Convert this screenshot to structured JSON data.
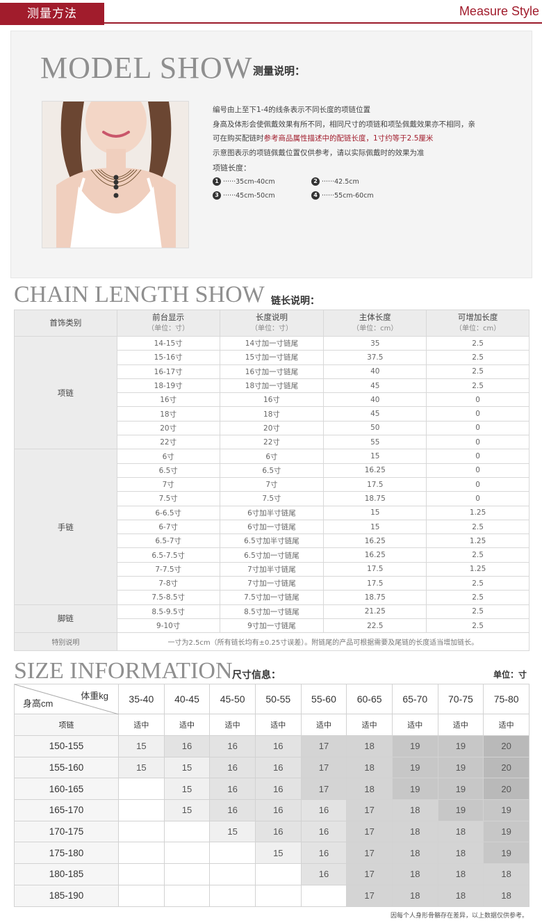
{
  "header": {
    "title": "测量方法",
    "right_label": "Measure Style"
  },
  "model_show": {
    "heading": "MODEL SHOW",
    "subheading": "测量说明：",
    "lines": [
      "编号由上至下1-4的线条表示不同长度的项链位置",
      "身高及体形会使佩戴效果有所不同，相同尺寸的项链和项坠佩戴效果亦不相同，亲"
    ],
    "line3_pre": "可在购买配链时",
    "line3_hl": "参考商品属性描述中的配链长度，1寸约等于2.5厘米",
    "line4": "示意图表示的项链佩戴位置仅供参考，请以实际佩戴时的效果为准",
    "length_title": "项链长度：",
    "lengths": [
      {
        "num": "1",
        "text": "······35cm-40cm"
      },
      {
        "num": "2",
        "text": "······42.5cm"
      },
      {
        "num": "3",
        "text": "······45cm-50cm"
      },
      {
        "num": "4",
        "text": "······55cm-60cm"
      }
    ]
  },
  "chain_length": {
    "heading": "CHAIN LENGTH SHOW",
    "subheading": "链长说明：",
    "columns": [
      {
        "label": "首饰类别",
        "unit": ""
      },
      {
        "label": "前台显示",
        "unit": "（单位：寸）"
      },
      {
        "label": "长度说明",
        "unit": "（单位：寸）"
      },
      {
        "label": "主体长度",
        "unit": "（单位：cm）"
      },
      {
        "label": "可增加长度",
        "unit": "（单位：cm）"
      }
    ],
    "groups": [
      {
        "category": "项链",
        "rows": [
          [
            "14-15寸",
            "14寸加一寸链尾",
            "35",
            "2.5"
          ],
          [
            "15-16寸",
            "15寸加一寸链尾",
            "37.5",
            "2.5"
          ],
          [
            "16-17寸",
            "16寸加一寸链尾",
            "40",
            "2.5"
          ],
          [
            "18-19寸",
            "18寸加一寸链尾",
            "45",
            "2.5"
          ],
          [
            "16寸",
            "16寸",
            "40",
            "0"
          ],
          [
            "18寸",
            "18寸",
            "45",
            "0"
          ],
          [
            "20寸",
            "20寸",
            "50",
            "0"
          ],
          [
            "22寸",
            "22寸",
            "55",
            "0"
          ]
        ]
      },
      {
        "category": "手链",
        "rows": [
          [
            "6寸",
            "6寸",
            "15",
            "0"
          ],
          [
            "6.5寸",
            "6.5寸",
            "16.25",
            "0"
          ],
          [
            "7寸",
            "7寸",
            "17.5",
            "0"
          ],
          [
            "7.5寸",
            "7.5寸",
            "18.75",
            "0"
          ],
          [
            "6-6.5寸",
            "6寸加半寸链尾",
            "15",
            "1.25"
          ],
          [
            "6-7寸",
            "6寸加一寸链尾",
            "15",
            "2.5"
          ],
          [
            "6.5-7寸",
            "6.5寸加半寸链尾",
            "16.25",
            "1.25"
          ],
          [
            "6.5-7.5寸",
            "6.5寸加一寸链尾",
            "16.25",
            "2.5"
          ],
          [
            "7-7.5寸",
            "7寸加半寸链尾",
            "17.5",
            "1.25"
          ],
          [
            "7-8寸",
            "7寸加一寸链尾",
            "17.5",
            "2.5"
          ],
          [
            "7.5-8.5寸",
            "7.5寸加一寸链尾",
            "18.75",
            "2.5"
          ]
        ]
      },
      {
        "category": "脚链",
        "rows": [
          [
            "8.5-9.5寸",
            "8.5寸加一寸链尾",
            "21.25",
            "2.5"
          ],
          [
            "9-10寸",
            "9寸加一寸链尾",
            "22.5",
            "2.5"
          ]
        ]
      }
    ],
    "special_label": "特别说明",
    "special_text": "一寸为2.5cm（所有链长均有±0.25寸误差）。附链尾的产品可根据需要及尾链的长度适当增加链长。"
  },
  "size_info": {
    "heading": "SIZE INFORMATION",
    "subheading": "尺寸信息：",
    "unit": "单位：寸",
    "corner_weight": "体重kg",
    "corner_height": "身高cm",
    "weights": [
      "35-40",
      "40-45",
      "45-50",
      "50-55",
      "55-60",
      "60-65",
      "65-70",
      "70-75",
      "75-80"
    ],
    "fit_label": "项链",
    "fit_value": "适中",
    "rows": [
      {
        "height": "150-155",
        "values": [
          "15",
          "16",
          "16",
          "16",
          "17",
          "18",
          "19",
          "19",
          "20"
        ]
      },
      {
        "height": "155-160",
        "values": [
          "15",
          "15",
          "16",
          "16",
          "17",
          "18",
          "19",
          "19",
          "20"
        ]
      },
      {
        "height": "160-165",
        "values": [
          "",
          "15",
          "16",
          "16",
          "17",
          "18",
          "19",
          "19",
          "20"
        ]
      },
      {
        "height": "165-170",
        "values": [
          "",
          "15",
          "16",
          "16",
          "16",
          "17",
          "18",
          "19",
          "19"
        ]
      },
      {
        "height": "170-175",
        "values": [
          "",
          "",
          "15",
          "16",
          "16",
          "17",
          "18",
          "18",
          "19"
        ]
      },
      {
        "height": "175-180",
        "values": [
          "",
          "",
          "",
          "15",
          "16",
          "17",
          "18",
          "18",
          "19"
        ]
      },
      {
        "height": "180-185",
        "values": [
          "",
          "",
          "",
          "",
          "16",
          "17",
          "18",
          "18",
          "18"
        ]
      },
      {
        "height": "185-190",
        "values": [
          "",
          "",
          "",
          "",
          "",
          "17",
          "18",
          "18",
          "18"
        ]
      }
    ],
    "footnote": "因每个人身形骨骼存在差异，以上数据仅供参考。"
  }
}
